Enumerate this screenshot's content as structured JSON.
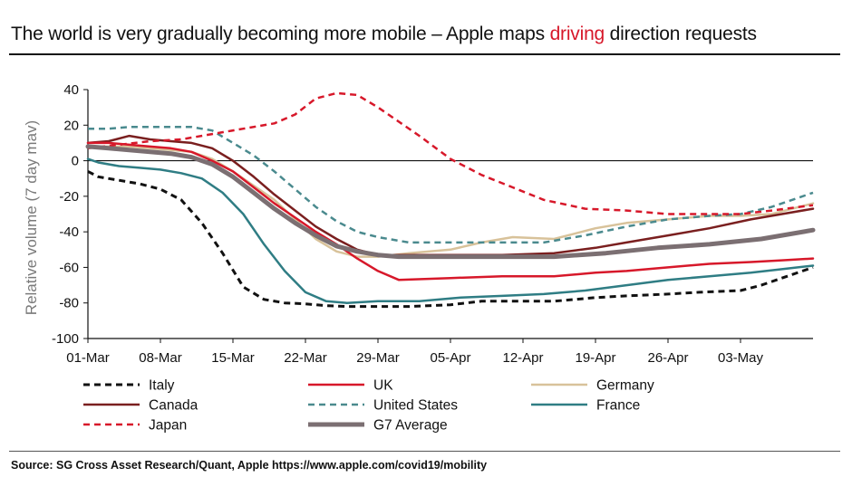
{
  "title": {
    "prefix": "The world is very gradually becoming more mobile – Apple maps ",
    "highlight": "driving",
    "suffix": " direction requests",
    "highlight_color": "#d7182a"
  },
  "source": "Source: SG Cross Asset Research/Quant, Apple https://www.apple.com/covid19/mobility",
  "chart_data": {
    "type": "line",
    "title": "The world is very gradually becoming more mobile – Apple maps driving direction requests",
    "xlabel": "",
    "ylabel": "Relative volume (7 day mav)",
    "ylim": [
      -100,
      40
    ],
    "yticks": [
      40,
      20,
      0,
      -20,
      -40,
      -60,
      -80,
      -100
    ],
    "x_start": "01-Mar",
    "x_days": 70,
    "xtick_labels": [
      "01-Mar",
      "08-Mar",
      "15-Mar",
      "22-Mar",
      "29-Mar",
      "05-Apr",
      "12-Apr",
      "19-Apr",
      "26-Apr",
      "03-May"
    ],
    "xtick_days": [
      0,
      7,
      14,
      21,
      28,
      35,
      42,
      49,
      56,
      63
    ],
    "zero_line": true,
    "legend_position": "bottom",
    "series": [
      {
        "name": "Italy",
        "color": "#111111",
        "dash": "dash",
        "width": 3,
        "x": [
          0,
          1,
          3,
          5,
          7,
          9,
          11,
          13,
          15,
          17,
          19,
          21,
          23,
          25,
          28,
          31,
          35,
          38,
          42,
          45,
          49,
          52,
          56,
          59,
          63,
          65,
          67,
          70
        ],
        "y": [
          -6,
          -9,
          -11,
          -13,
          -16,
          -22,
          -35,
          -52,
          -71,
          -78,
          -80,
          -80.5,
          -81.5,
          -82,
          -82,
          -82,
          -81,
          -79,
          -79,
          -79,
          -77,
          -76,
          -75,
          -74,
          -73,
          -70,
          -66,
          -60
        ]
      },
      {
        "name": "UK",
        "color": "#d7182a",
        "dash": "solid",
        "width": 2.5,
        "x": [
          0,
          2,
          4,
          6,
          8,
          10,
          12,
          14,
          16,
          18,
          20,
          22,
          24,
          26,
          28,
          30,
          35,
          40,
          45,
          49,
          52,
          56,
          60,
          64,
          67,
          70
        ],
        "y": [
          10,
          10,
          9,
          8,
          7,
          5,
          0,
          -6,
          -15,
          -24,
          -32,
          -40,
          -47,
          -55,
          -62,
          -67,
          -66,
          -65,
          -65,
          -63,
          -62,
          -60,
          -58,
          -57,
          -56,
          -55
        ]
      },
      {
        "name": "Germany",
        "color": "#d8c29a",
        "dash": "solid",
        "width": 2.5,
        "x": [
          0,
          2,
          4,
          6,
          8,
          10,
          12,
          14,
          16,
          18,
          20,
          22,
          24,
          26,
          28,
          31,
          35,
          38,
          41,
          45,
          49,
          52,
          56,
          60,
          63,
          66,
          68,
          70
        ],
        "y": [
          8,
          8,
          8,
          7,
          6,
          5,
          1,
          -6,
          -14,
          -22,
          -33,
          -44,
          -51,
          -54,
          -54,
          -52,
          -50,
          -46,
          -43,
          -44,
          -38,
          -35,
          -33,
          -31,
          -31,
          -30,
          -27,
          -24
        ]
      },
      {
        "name": "Canada",
        "color": "#7a1f1f",
        "dash": "solid",
        "width": 2.5,
        "x": [
          0,
          2,
          4,
          6,
          8,
          10,
          12,
          14,
          16,
          18,
          20,
          22,
          24,
          26,
          28,
          31,
          35,
          40,
          45,
          49,
          52,
          56,
          60,
          64,
          67,
          70
        ],
        "y": [
          10,
          11,
          14,
          12,
          11,
          10,
          7,
          0,
          -9,
          -19,
          -28,
          -37,
          -44,
          -50,
          -53,
          -53,
          -53,
          -53,
          -52,
          -49,
          -46,
          -42,
          -38,
          -33,
          -30,
          -27
        ]
      },
      {
        "name": "United States",
        "color": "#4a8a8e",
        "dash": "dash",
        "width": 2.5,
        "x": [
          0,
          2,
          4,
          6,
          8,
          10,
          12,
          14,
          16,
          18,
          20,
          22,
          24,
          26,
          28,
          31,
          35,
          40,
          44,
          48,
          52,
          56,
          60,
          63,
          66,
          68,
          70
        ],
        "y": [
          18,
          18,
          19,
          19,
          19,
          19,
          17,
          10,
          3,
          -6,
          -16,
          -26,
          -34,
          -40,
          -43,
          -46,
          -46,
          -46,
          -46,
          -42,
          -37,
          -33,
          -31,
          -30,
          -26,
          -22,
          -18
        ]
      },
      {
        "name": "France",
        "color": "#2f7d84",
        "dash": "solid",
        "width": 2.5,
        "x": [
          0,
          1,
          3,
          5,
          7,
          9,
          11,
          13,
          15,
          17,
          19,
          21,
          23,
          25,
          28,
          32,
          36,
          40,
          44,
          48,
          52,
          56,
          60,
          64,
          67,
          70
        ],
        "y": [
          1,
          -1,
          -3,
          -4,
          -5,
          -7,
          -10,
          -18,
          -30,
          -47,
          -62,
          -74,
          -79,
          -80,
          -79,
          -79,
          -77,
          -76,
          -75,
          -73,
          -70,
          -67,
          -65,
          -63,
          -61,
          -59
        ]
      },
      {
        "name": "Japan",
        "color": "#d7182a",
        "dash": "dash",
        "width": 2.5,
        "x": [
          0,
          3,
          6,
          9,
          12,
          15,
          18,
          20,
          22,
          24,
          26,
          28,
          30,
          32,
          35,
          38,
          41,
          44,
          48,
          52,
          56,
          60,
          63,
          66,
          70
        ],
        "y": [
          7,
          9,
          11,
          12,
          15,
          18,
          21,
          26,
          35,
          38,
          37,
          30,
          22,
          14,
          1,
          -8,
          -15,
          -22,
          -27,
          -28,
          -30,
          -30,
          -30,
          -28,
          -25
        ]
      },
      {
        "name": "G7 Average",
        "color": "#7b6f72",
        "dash": "solid",
        "width": 5,
        "x": [
          0,
          2,
          4,
          6,
          8,
          10,
          12,
          14,
          16,
          18,
          20,
          22,
          24,
          26,
          28,
          30,
          35,
          40,
          45,
          50,
          55,
          60,
          65,
          70
        ],
        "y": [
          8,
          7,
          6,
          5,
          4,
          2,
          -2,
          -9,
          -18,
          -27,
          -35,
          -42,
          -48,
          -51,
          -53,
          -54,
          -54,
          -54,
          -54,
          -52,
          -49,
          -47,
          -44,
          -39
        ]
      }
    ]
  }
}
